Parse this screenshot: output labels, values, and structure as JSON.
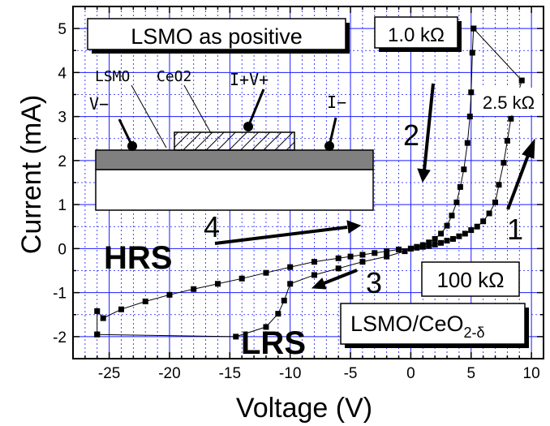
{
  "chart_data": {
    "type": "line",
    "xlabel": "Voltage  (V)",
    "ylabel": "Current  (mA)",
    "xlim": [
      -28,
      11
    ],
    "ylim": [
      -2.5,
      5.5
    ],
    "x_ticks": [
      -25,
      -20,
      -15,
      -10,
      -5,
      0,
      5,
      10
    ],
    "y_ticks": [
      -2,
      -1,
      0,
      1,
      2,
      3,
      4,
      5
    ],
    "grid": true,
    "grid_color": "#1a1aff",
    "marker_color": "#000000",
    "series": [
      {
        "points": [
          [
            -26,
            -1.95
          ],
          [
            -14.5,
            -2.0
          ],
          [
            -12,
            -1.78
          ],
          [
            -11,
            -1.48
          ],
          [
            -10.5,
            -1.18
          ],
          [
            -10,
            -0.8
          ],
          [
            -8,
            -0.6
          ],
          [
            -6,
            -0.45
          ],
          [
            -4,
            -0.3
          ],
          [
            -2,
            -0.18
          ],
          [
            -0.5,
            -0.06
          ],
          [
            0,
            0
          ],
          [
            0.5,
            0.04
          ],
          [
            1,
            0.08
          ],
          [
            1.5,
            0.14
          ],
          [
            2,
            0.22
          ],
          [
            2.5,
            0.34
          ],
          [
            3,
            0.52
          ],
          [
            3.4,
            0.75
          ],
          [
            3.8,
            1.05
          ],
          [
            4.1,
            1.4
          ],
          [
            4.4,
            1.8
          ],
          [
            4.7,
            2.4
          ],
          [
            4.9,
            3.0
          ],
          [
            5.0,
            3.55
          ],
          [
            5.1,
            4.45
          ],
          [
            5.2,
            5.0
          ]
        ]
      },
      {
        "points": [
          [
            5.2,
            5.0
          ],
          [
            9.2,
            3.82
          ],
          [
            8.3,
            2.95
          ],
          [
            8.0,
            2.45
          ],
          [
            7.7,
            1.95
          ],
          [
            7.3,
            1.45
          ],
          [
            7.0,
            1.05
          ],
          [
            6.5,
            0.8
          ],
          [
            6,
            0.62
          ],
          [
            5.5,
            0.5
          ],
          [
            5,
            0.42
          ],
          [
            4.5,
            0.34
          ],
          [
            4,
            0.28
          ],
          [
            3.5,
            0.22
          ],
          [
            3,
            0.18
          ],
          [
            2.5,
            0.13
          ],
          [
            2,
            0.09
          ],
          [
            1.5,
            0.06
          ],
          [
            1,
            0.04
          ],
          [
            0.5,
            0.02
          ],
          [
            0,
            0
          ],
          [
            -1,
            -0.02
          ],
          [
            -2,
            -0.06
          ],
          [
            -3,
            -0.1
          ],
          [
            -4,
            -0.14
          ],
          [
            -5,
            -0.18
          ],
          [
            -6,
            -0.22
          ],
          [
            -8,
            -0.3
          ],
          [
            -10,
            -0.42
          ],
          [
            -12,
            -0.55
          ],
          [
            -14,
            -0.68
          ],
          [
            -16,
            -0.8
          ],
          [
            -18,
            -0.92
          ],
          [
            -20,
            -1.05
          ],
          [
            -22,
            -1.2
          ],
          [
            -24,
            -1.38
          ],
          [
            -25.5,
            -1.58
          ],
          [
            -26,
            -1.42
          ],
          [
            -26,
            -1.95
          ]
        ]
      }
    ],
    "annotations": {
      "title_box": "LSMO as positive",
      "r_1k": "1.0 kΩ",
      "r_25k": "2.5 kΩ",
      "r_100k": "100 kΩ",
      "sample_main": "LSMO/CeO",
      "sample_sub": "2-δ",
      "hrs": "HRS",
      "lrs": "LRS",
      "step1": "1",
      "step2": "2",
      "step3": "3",
      "step4": "4"
    },
    "inset": {
      "lsmo": "LSMO",
      "ceo2": "CeO2",
      "iv_plus": "I+V+",
      "v_minus": "V−",
      "i_minus": "I−"
    }
  }
}
